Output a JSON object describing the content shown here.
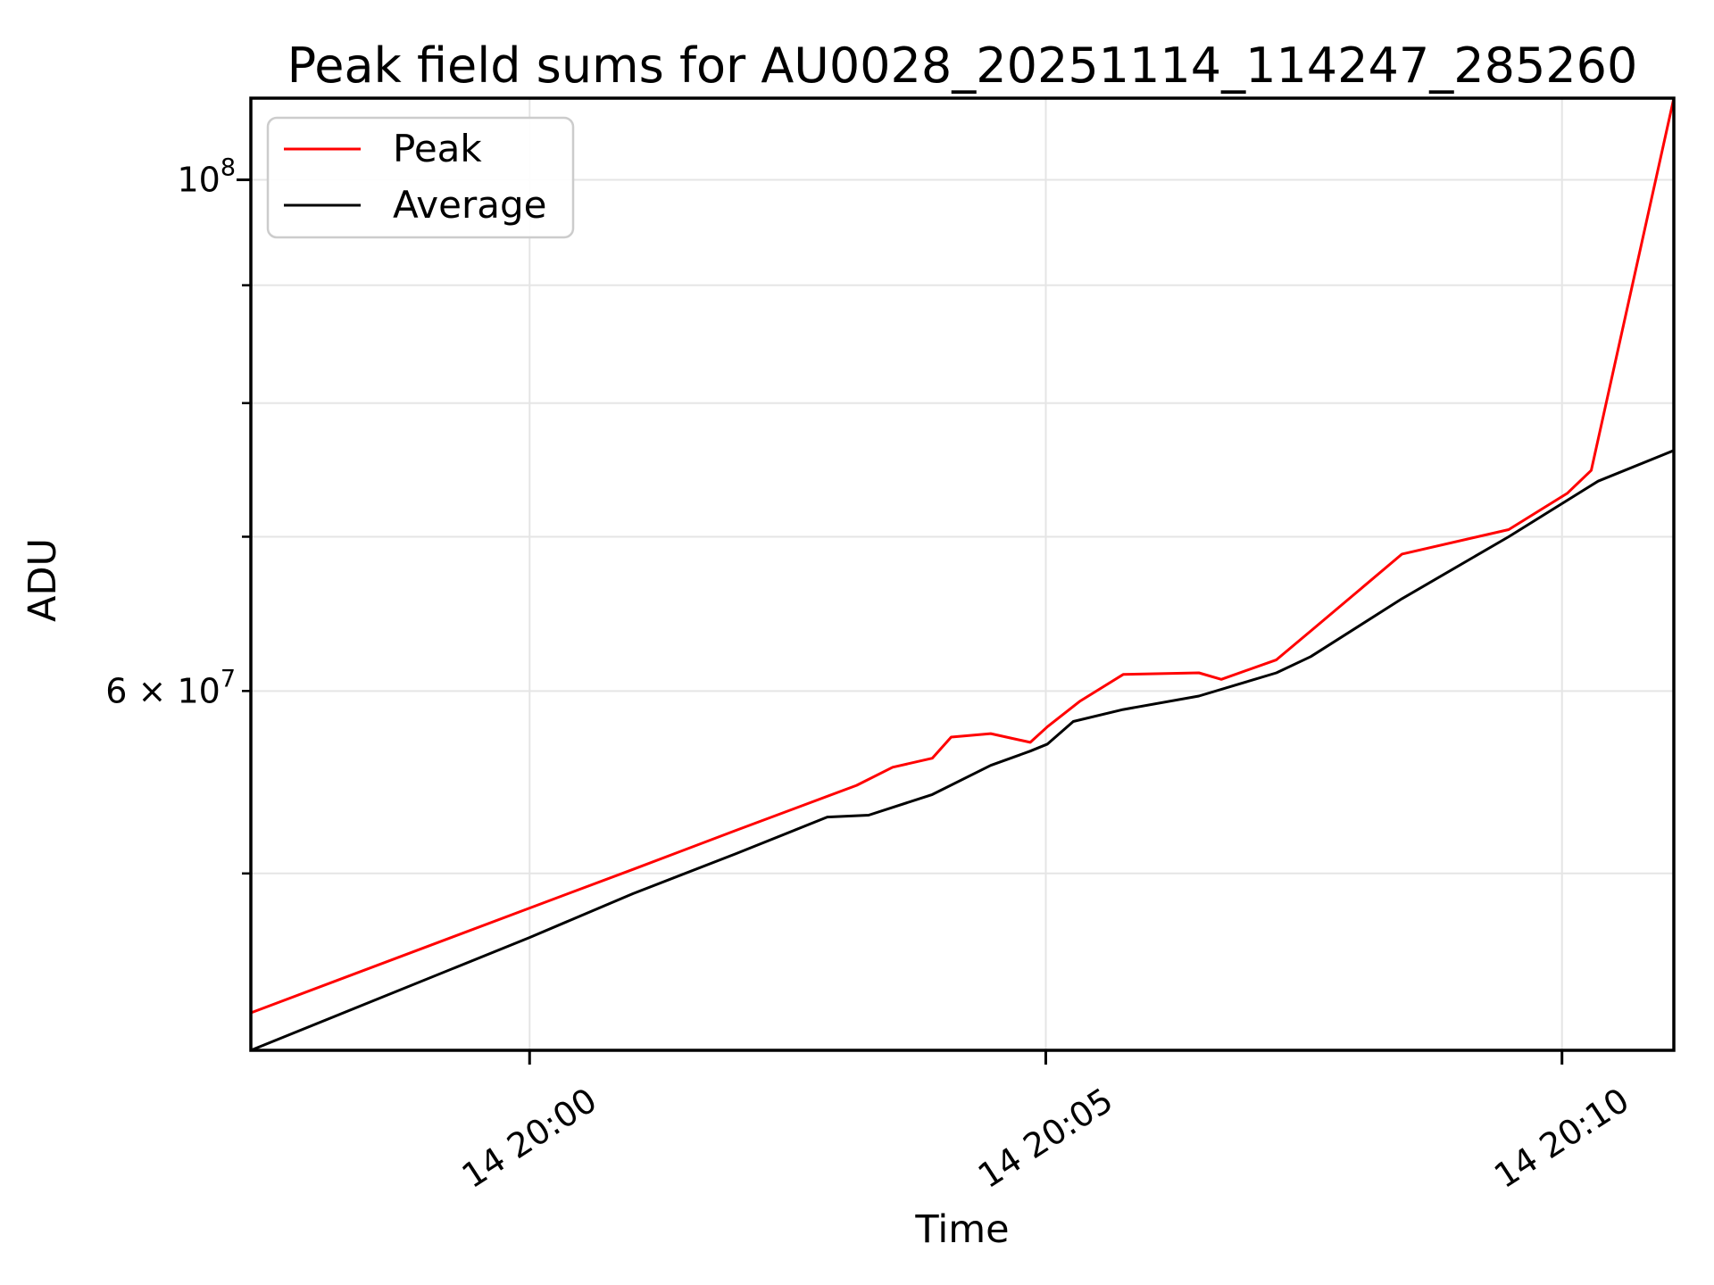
{
  "window": {
    "background": "#ffffff"
  },
  "colors": {
    "peak_line": "#ff0000",
    "average_line": "#000000",
    "grid_line": "#e5e5e5",
    "spine": "#000000",
    "legend_border": "#cccccc",
    "text": "#000000"
  },
  "legend": {
    "position": "upper left",
    "items": [
      {
        "label": "Peak",
        "color": "#ff0000"
      },
      {
        "label": "Average",
        "color": "#000000"
      }
    ]
  },
  "chart_data": {
    "type": "line",
    "title": "Peak field sums for AU0028_20251114_114247_285260",
    "xlabel": "Time",
    "ylabel": "ADU",
    "yscale": "log",
    "grid": "both",
    "legend_position": "upper left",
    "ylim": [
      41900000,
      108500000
    ],
    "xlim_seconds": [
      -162,
      665
    ],
    "xlim_times": [
      "19:57:18",
      "20:11:05"
    ],
    "x_ticks": [
      {
        "t": 0,
        "label": "14 20:00"
      },
      {
        "t": 300,
        "label": "14 20:05"
      },
      {
        "t": 600,
        "label": "14 20:10"
      }
    ],
    "y_major_ticks": [
      {
        "value": 100000000,
        "base": "10",
        "exp": "8",
        "label": "10^8"
      }
    ],
    "y_minor_ticks": [
      {
        "value": 50000000
      },
      {
        "value": 60000000,
        "prefix": "6 × ",
        "base": "10",
        "exp": "7",
        "label": "6 x 10^7"
      },
      {
        "value": 70000000
      },
      {
        "value": 80000000
      },
      {
        "value": 90000000
      }
    ],
    "series": [
      {
        "name": "Peak",
        "color": "#ff0000",
        "points": [
          [
            -162,
            43500000
          ],
          [
            0,
            48300000
          ],
          [
            60,
            50200000
          ],
          [
            120,
            52200000
          ],
          [
            190,
            54600000
          ],
          [
            211,
            55600000
          ],
          [
            234,
            56100000
          ],
          [
            245,
            57300000
          ],
          [
            268,
            57500000
          ],
          [
            291,
            57000000
          ],
          [
            301,
            57900000
          ],
          [
            320,
            59400000
          ],
          [
            345,
            61000000
          ],
          [
            389,
            61100000
          ],
          [
            402,
            60700000
          ],
          [
            434,
            61900000
          ],
          [
            455,
            63800000
          ],
          [
            507,
            68800000
          ],
          [
            569,
            70500000
          ],
          [
            603,
            73100000
          ],
          [
            617,
            74800000
          ],
          [
            665,
            108500000
          ]
        ]
      },
      {
        "name": "Average",
        "color": "#000000",
        "points": [
          [
            -162,
            41900000
          ],
          [
            0,
            46900000
          ],
          [
            60,
            49000000
          ],
          [
            120,
            51000000
          ],
          [
            173,
            52900000
          ],
          [
            197,
            53000000
          ],
          [
            234,
            54100000
          ],
          [
            268,
            55700000
          ],
          [
            291,
            56500000
          ],
          [
            301,
            56900000
          ],
          [
            316,
            58200000
          ],
          [
            345,
            58900000
          ],
          [
            389,
            59700000
          ],
          [
            434,
            61100000
          ],
          [
            454,
            62100000
          ],
          [
            507,
            65800000
          ],
          [
            569,
            70000000
          ],
          [
            621,
            74000000
          ],
          [
            665,
            76300000
          ]
        ]
      }
    ]
  }
}
